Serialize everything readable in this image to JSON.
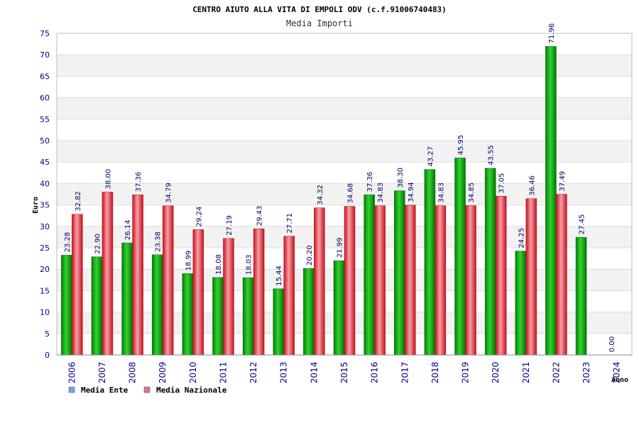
{
  "chart_data": {
    "type": "bar",
    "title": "CENTRO AIUTO ALLA VITA DI EMPOLI ODV (c.f.91006740483)",
    "subtitle": "Media Importi",
    "xlabel": "Anno",
    "ylabel": "Euro",
    "ylim": [
      0,
      75
    ],
    "yticks": [
      0,
      5,
      10,
      15,
      20,
      25,
      30,
      35,
      40,
      45,
      50,
      55,
      60,
      65,
      70,
      75
    ],
    "grid": true,
    "legend_position": "bottom-left",
    "categories": [
      "2006",
      "2007",
      "2008",
      "2009",
      "2010",
      "2011",
      "2012",
      "2013",
      "2014",
      "2015",
      "2016",
      "2017",
      "2018",
      "2019",
      "2020",
      "2021",
      "2022",
      "2023",
      "2024"
    ],
    "series": [
      {
        "name": "Media Ente",
        "color": "#22b822",
        "legend_color": "#6fa8dc",
        "values": [
          23.28,
          22.9,
          26.14,
          23.38,
          18.99,
          18.08,
          18.03,
          15.44,
          20.2,
          21.99,
          37.36,
          38.3,
          43.27,
          45.95,
          43.55,
          24.25,
          71.96,
          27.45,
          0.0
        ],
        "labels": [
          "23.28",
          "22.90",
          "26.14",
          "23.38",
          "18.99",
          "18.08",
          "18.03",
          "15.44",
          "20.20",
          "21.99",
          "37.36",
          "38.30",
          "43.27",
          "45.95",
          "43.55",
          "24.25",
          "71.96",
          "27.45",
          "0.00"
        ]
      },
      {
        "name": "Media Nazionale",
        "color": "#e8404a",
        "legend_color": "#e0709a",
        "values": [
          32.82,
          38.0,
          37.36,
          34.79,
          29.24,
          27.19,
          29.43,
          27.71,
          34.32,
          34.68,
          34.83,
          34.94,
          34.83,
          34.85,
          37.05,
          36.46,
          37.49,
          null,
          null
        ],
        "labels": [
          "32.82",
          "38.00",
          "37.36",
          "34.79",
          "29.24",
          "27.19",
          "29.43",
          "27.71",
          "34.32",
          "34.68",
          "34.83",
          "34.94",
          "34.83",
          "34.85",
          "37.05",
          "36.46",
          "37.49",
          "",
          ""
        ]
      }
    ]
  }
}
